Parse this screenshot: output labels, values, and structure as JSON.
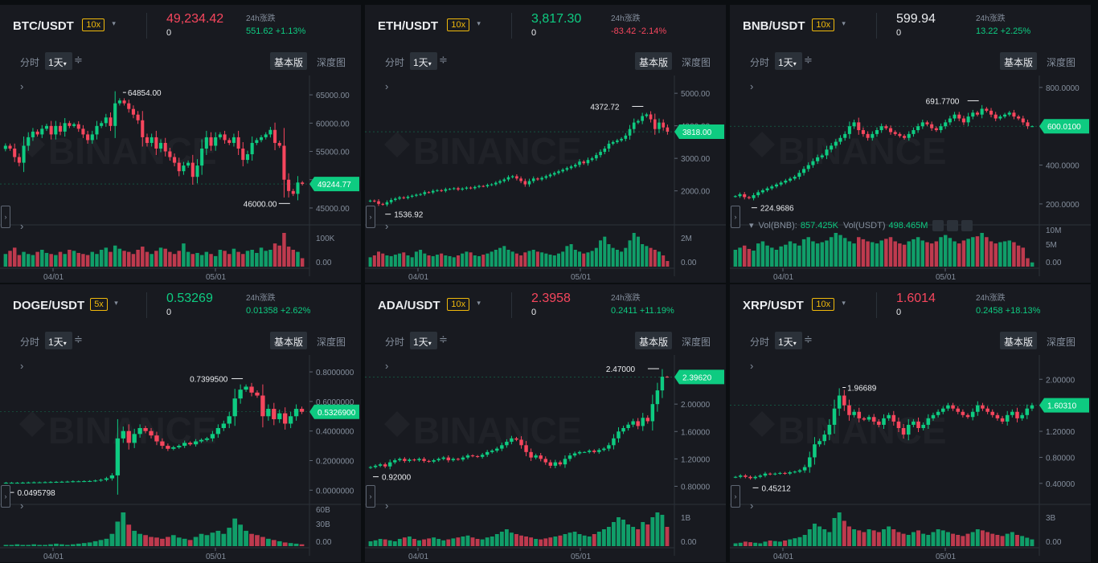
{
  "common": {
    "interval_label": "分时",
    "timeframe_label": "1天",
    "timeframe_caret": "▾",
    "settings_icon": "≑",
    "basic_label": "基本版",
    "depth_label": "深度图",
    "change_label": "24h涨跌",
    "expand_icon": "›",
    "dropdown_icon": "▾",
    "watermark": "BINANCE",
    "colors": {
      "up": "#0ecb81",
      "down": "#f6465d",
      "accent": "#f0b90b",
      "bg": "#181a20"
    }
  },
  "panels": [
    {
      "symbol": "BTC/USDT",
      "leverage": "10x",
      "price": "49,234.42",
      "price_dir": "dn",
      "zero": "0",
      "change": "551.62 +1.13%",
      "change_dir": "up",
      "y_ticks": [
        "65000.00",
        "60000.00",
        "55000.00",
        "50000.00",
        "45000.00"
      ],
      "vol_ticks": [
        "100K",
        "0.00"
      ],
      "x_ticks": [
        "04/01",
        "05/01"
      ],
      "high_label": "64854.00",
      "low_label": "46000.00",
      "last_label": "49244.77",
      "last_dir": "up",
      "chart_data": {
        "type": "candlestick",
        "y_range": [
          44000,
          67000
        ],
        "vol_range": [
          0,
          160000
        ],
        "closes": [
          56000,
          55500,
          54000,
          53000,
          56000,
          57500,
          58500,
          58000,
          59000,
          59500,
          58000,
          59500,
          58500,
          60000,
          59500,
          59800,
          59000,
          58000,
          57000,
          58000,
          59500,
          60000,
          61000,
          59500,
          63500,
          64000,
          63500,
          62500,
          61500,
          60500,
          57500,
          56500,
          57500,
          55500,
          56500,
          55000,
          54000,
          53000,
          51500,
          52500,
          53000,
          50500,
          52500,
          55500,
          57500,
          56000,
          57500,
          58000,
          57000,
          56500,
          57500,
          55500,
          53500,
          54500,
          56500,
          57000,
          57500,
          58000,
          58800,
          56500,
          56000,
          50000,
          48000,
          47500,
          49500,
          49244
        ],
        "vols": [
          60,
          75,
          90,
          55,
          70,
          60,
          55,
          70,
          80,
          65,
          60,
          55,
          70,
          60,
          80,
          75,
          65,
          60,
          55,
          70,
          60,
          80,
          90,
          70,
          100,
          85,
          75,
          70,
          60,
          80,
          95,
          70,
          60,
          75,
          90,
          85,
          70,
          60,
          75,
          110,
          70,
          60,
          65,
          55,
          70,
          60,
          50,
          80,
          75,
          60,
          85,
          70,
          60,
          75,
          80,
          65,
          90,
          75,
          80,
          110,
          100,
          160,
          95,
          80,
          70,
          40
        ]
      }
    },
    {
      "symbol": "ETH/USDT",
      "leverage": "10x",
      "price": "3,817.30",
      "price_dir": "up",
      "zero": "0",
      "change": "-83.42 -2.14%",
      "change_dir": "dn",
      "y_ticks": [
        "5000.00",
        "4000.00",
        "3000.00",
        "2000.00"
      ],
      "vol_ticks": [
        "2M",
        "0.00"
      ],
      "x_ticks": [
        "04/01",
        "05/01"
      ],
      "high_label": "4372.72",
      "low_label": "1536.92",
      "last_label": "3818.00",
      "last_dir": "up",
      "chart_data": {
        "type": "candlestick",
        "y_range": [
          1300,
          5300
        ],
        "vol_range": [
          0,
          3000000
        ],
        "closes": [
          1700,
          1680,
          1600,
          1580,
          1650,
          1720,
          1760,
          1800,
          1780,
          1820,
          1850,
          1880,
          1900,
          1960,
          1950,
          2000,
          2020,
          2000,
          2050,
          2060,
          2080,
          2040,
          2070,
          2100,
          2080,
          2120,
          2150,
          2140,
          2180,
          2200,
          2250,
          2300,
          2350,
          2420,
          2450,
          2380,
          2300,
          2200,
          2300,
          2380,
          2350,
          2400,
          2450,
          2500,
          2550,
          2600,
          2650,
          2700,
          2750,
          2800,
          2900,
          2850,
          2950,
          3000,
          3100,
          3200,
          3300,
          3450,
          3500,
          3550,
          3600,
          3700,
          3900,
          4100,
          4150,
          4300,
          4350,
          4200,
          3900,
          4100,
          3950,
          3818
        ],
        "vols": [
          25,
          30,
          40,
          35,
          30,
          28,
          32,
          35,
          38,
          30,
          25,
          40,
          45,
          35,
          30,
          28,
          32,
          35,
          30,
          28,
          25,
          30,
          35,
          40,
          38,
          30,
          28,
          32,
          35,
          40,
          45,
          50,
          55,
          45,
          40,
          35,
          30,
          38,
          42,
          45,
          40,
          38,
          35,
          32,
          30,
          35,
          40,
          55,
          60,
          45,
          40,
          35,
          38,
          42,
          50,
          70,
          80,
          60,
          50,
          45,
          40,
          50,
          70,
          90,
          80,
          60,
          55,
          50,
          45,
          40,
          30,
          15
        ]
      }
    },
    {
      "symbol": "BNB/USDT",
      "leverage": "10x",
      "price": "599.94",
      "price_dir": "wh",
      "zero": "0",
      "change": "13.22 +2.25%",
      "change_dir": "up",
      "y_ticks": [
        "800.0000",
        "600.0000",
        "400.0000",
        "200.0000"
      ],
      "vol_ticks": [
        "10M",
        "5M",
        "0.00"
      ],
      "x_ticks": [
        "04/01",
        "05/01"
      ],
      "high_label": "691.7700",
      "low_label": "224.9686",
      "last_label": "600.0100",
      "last_dir": "up",
      "vol_bar": {
        "label1": "Vol(BNB):",
        "value1": "857.425K",
        "label2": "Vol(USDT)",
        "value2": "498.465M"
      },
      "chart_data": {
        "type": "candlestick",
        "y_range": [
          150,
          820
        ],
        "vol_range": [
          0,
          11000000
        ],
        "closes": [
          240,
          250,
          235,
          230,
          245,
          260,
          270,
          280,
          290,
          300,
          310,
          320,
          330,
          340,
          360,
          380,
          400,
          420,
          440,
          450,
          480,
          500,
          520,
          540,
          560,
          600,
          620,
          580,
          560,
          540,
          560,
          580,
          600,
          590,
          570,
          560,
          550,
          540,
          560,
          580,
          600,
          620,
          610,
          590,
          580,
          600,
          620,
          640,
          660,
          640,
          620,
          650,
          670,
          660,
          690,
          680,
          660,
          640,
          650,
          660,
          670,
          650,
          640,
          620,
          600,
          600
        ],
        "vols": [
          40,
          45,
          50,
          42,
          38,
          55,
          60,
          50,
          45,
          40,
          48,
          52,
          60,
          55,
          50,
          65,
          70,
          60,
          55,
          58,
          62,
          70,
          80,
          75,
          68,
          60,
          55,
          70,
          65,
          60,
          58,
          55,
          62,
          66,
          70,
          60,
          55,
          52,
          60,
          65,
          70,
          62,
          58,
          55,
          60,
          70,
          75,
          68,
          60,
          55,
          62,
          66,
          70,
          72,
          80,
          70,
          60,
          55,
          58,
          60,
          62,
          58,
          50,
          45,
          20,
          10
        ]
      }
    },
    {
      "symbol": "DOGE/USDT",
      "leverage": "5x",
      "price": "0.53269",
      "price_dir": "up",
      "zero": "0",
      "change": "0.01358 +2.62%",
      "change_dir": "up",
      "y_ticks": [
        "0.8000000",
        "0.6000000",
        "0.4000000",
        "0.2000000",
        "0.0000000"
      ],
      "vol_ticks": [
        "60B",
        "30B",
        "0.00"
      ],
      "x_ticks": [
        "04/01",
        "05/01"
      ],
      "high_label": "0.7399500",
      "low_label": "0.0495798",
      "last_label": "0.5326900",
      "last_dir": "up",
      "chart_data": {
        "type": "candlestick",
        "y_range": [
          -0.02,
          0.86
        ],
        "vol_range": [
          0,
          65000000000
        ],
        "closes": [
          0.05,
          0.05,
          0.05,
          0.051,
          0.052,
          0.053,
          0.053,
          0.054,
          0.055,
          0.056,
          0.057,
          0.058,
          0.06,
          0.06,
          0.061,
          0.062,
          0.065,
          0.07,
          0.08,
          0.1,
          0.35,
          0.4,
          0.32,
          0.38,
          0.42,
          0.4,
          0.37,
          0.33,
          0.3,
          0.28,
          0.29,
          0.3,
          0.32,
          0.31,
          0.33,
          0.34,
          0.35,
          0.38,
          0.42,
          0.45,
          0.5,
          0.62,
          0.68,
          0.7,
          0.66,
          0.64,
          0.5,
          0.55,
          0.48,
          0.52,
          0.45,
          0.5,
          0.55,
          0.53
        ],
        "vols": [
          2,
          2,
          3,
          2,
          2,
          3,
          2,
          2,
          3,
          4,
          3,
          2,
          3,
          4,
          5,
          6,
          8,
          10,
          12,
          20,
          40,
          55,
          35,
          25,
          20,
          18,
          15,
          14,
          12,
          15,
          18,
          14,
          12,
          10,
          15,
          20,
          18,
          22,
          25,
          20,
          30,
          45,
          35,
          25,
          20,
          18,
          15,
          12,
          10,
          8,
          6,
          5,
          4,
          3
        ]
      }
    },
    {
      "symbol": "ADA/USDT",
      "leverage": "10x",
      "price": "2.3958",
      "price_dir": "dn",
      "zero": "0",
      "change": "0.2411 +11.19%",
      "change_dir": "up",
      "y_ticks": [
        "2.00000",
        "1.60000",
        "1.20000",
        "0.80000"
      ],
      "vol_ticks": [
        "1B",
        "0.00"
      ],
      "x_ticks": [
        "04/01",
        "05/01"
      ],
      "high_label": "2.47000",
      "low_label": "0.92000",
      "last_label": "2.39620",
      "last_dir": "up",
      "chart_data": {
        "type": "candlestick",
        "y_range": [
          0.7,
          2.6
        ],
        "vol_range": [
          0,
          1600000000
        ],
        "closes": [
          1.08,
          1.1,
          1.12,
          1.09,
          1.15,
          1.18,
          1.2,
          1.17,
          1.19,
          1.18,
          1.2,
          1.17,
          1.16,
          1.18,
          1.2,
          1.22,
          1.18,
          1.2,
          1.19,
          1.22,
          1.25,
          1.24,
          1.23,
          1.26,
          1.3,
          1.32,
          1.35,
          1.4,
          1.45,
          1.5,
          1.48,
          1.4,
          1.3,
          1.22,
          1.25,
          1.2,
          1.15,
          1.1,
          1.15,
          1.12,
          1.2,
          1.25,
          1.28,
          1.3,
          1.3,
          1.32,
          1.3,
          1.33,
          1.35,
          1.4,
          1.5,
          1.6,
          1.65,
          1.7,
          1.75,
          1.68,
          1.8,
          1.75,
          2.0,
          2.2,
          2.4,
          2.396
        ],
        "vols": [
          10,
          12,
          15,
          14,
          12,
          10,
          15,
          18,
          20,
          15,
          12,
          14,
          16,
          18,
          15,
          12,
          14,
          16,
          18,
          20,
          22,
          18,
          15,
          14,
          18,
          20,
          25,
          30,
          35,
          28,
          25,
          22,
          20,
          18,
          15,
          14,
          16,
          18,
          20,
          22,
          25,
          28,
          30,
          25,
          22,
          20,
          25,
          30,
          35,
          40,
          50,
          60,
          55,
          45,
          40,
          35,
          50,
          45,
          60,
          70,
          65,
          40
        ]
      }
    },
    {
      "symbol": "XRP/USDT",
      "leverage": "10x",
      "price": "1.6014",
      "price_dir": "dn",
      "zero": "0",
      "change": "0.2458 +18.13%",
      "change_dir": "up",
      "y_ticks": [
        "2.00000",
        "1.60000",
        "1.20000",
        "0.80000",
        "0.40000"
      ],
      "vol_ticks": [
        "3B",
        "0.00"
      ],
      "x_ticks": [
        "04/01",
        "05/01"
      ],
      "high_label": "1.96689",
      "low_label": "0.45212",
      "last_label": "1.60310",
      "last_dir": "up",
      "chart_data": {
        "type": "candlestick",
        "y_range": [
          0.25,
          2.25
        ],
        "vol_range": [
          0,
          3600000000
        ],
        "closes": [
          0.5,
          0.52,
          0.5,
          0.48,
          0.5,
          0.52,
          0.55,
          0.54,
          0.55,
          0.56,
          0.55,
          0.57,
          0.58,
          0.6,
          0.65,
          0.8,
          1.0,
          1.05,
          1.15,
          1.3,
          1.55,
          1.75,
          1.6,
          1.45,
          1.5,
          1.4,
          1.38,
          1.42,
          1.35,
          1.3,
          1.4,
          1.45,
          1.35,
          1.25,
          1.15,
          1.3,
          1.35,
          1.25,
          1.3,
          1.4,
          1.45,
          1.5,
          1.55,
          1.6,
          1.55,
          1.5,
          1.45,
          1.42,
          1.5,
          1.6,
          1.55,
          1.5,
          1.45,
          1.4,
          1.35,
          1.45,
          1.5,
          1.4,
          1.45,
          1.55,
          1.6
        ],
        "vols": [
          5,
          6,
          8,
          7,
          6,
          5,
          8,
          10,
          9,
          8,
          10,
          12,
          14,
          16,
          20,
          30,
          40,
          35,
          30,
          25,
          50,
          60,
          45,
          35,
          30,
          28,
          25,
          30,
          28,
          25,
          30,
          35,
          30,
          25,
          22,
          20,
          25,
          28,
          22,
          20,
          25,
          30,
          28,
          25,
          22,
          20,
          18,
          22,
          25,
          30,
          28,
          25,
          22,
          20,
          18,
          22,
          25,
          20,
          18,
          15,
          12
        ]
      }
    }
  ]
}
